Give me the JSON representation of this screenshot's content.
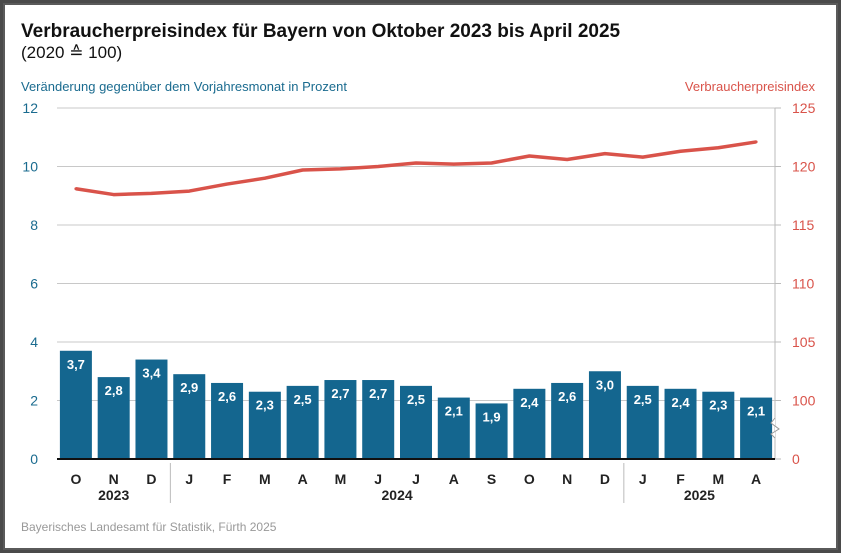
{
  "title": "Verbraucherpreisindex für Bayern von Oktober 2023 bis April 2025",
  "subtitle": "(2020 ≙ 100)",
  "source": "Bayerisches Landesamt für Statistik, Fürth 2025",
  "colors": {
    "bar": "#14668f",
    "line": "#d9534a",
    "left_axis": "#1a6b8f",
    "right_axis": "#d9534a"
  },
  "chart_data": {
    "type": "bar+line",
    "categories": [
      "O",
      "N",
      "D",
      "J",
      "F",
      "M",
      "A",
      "M",
      "J",
      "J",
      "A",
      "S",
      "O",
      "N",
      "D",
      "J",
      "F",
      "M",
      "A"
    ],
    "years": [
      {
        "label": "2023",
        "from": 0,
        "to": 2
      },
      {
        "label": "2024",
        "from": 3,
        "to": 14
      },
      {
        "label": "2025",
        "from": 15,
        "to": 18
      }
    ],
    "series": [
      {
        "name": "Veränderung gegenüber dem Vorjahresmonat in Prozent",
        "type": "bar",
        "axis": "left",
        "values": [
          3.7,
          2.8,
          3.4,
          2.9,
          2.6,
          2.3,
          2.5,
          2.7,
          2.7,
          2.5,
          2.1,
          1.9,
          2.4,
          2.6,
          3.0,
          2.5,
          2.4,
          2.3,
          2.1
        ],
        "labels": [
          "3,7",
          "2,8",
          "3,4",
          "2,9",
          "2,6",
          "2,3",
          "2,5",
          "2,7",
          "2,7",
          "2,5",
          "2,1",
          "1,9",
          "2,4",
          "2,6",
          "3,0",
          "2,5",
          "2,4",
          "2,3",
          "2,1"
        ]
      },
      {
        "name": "Verbraucherpreisindex",
        "type": "line",
        "axis": "right",
        "values": [
          118.1,
          117.6,
          117.7,
          117.9,
          118.5,
          119.0,
          119.7,
          119.8,
          120.0,
          120.3,
          120.2,
          120.3,
          120.9,
          120.6,
          121.1,
          120.8,
          121.3,
          121.6,
          122.1
        ]
      }
    ],
    "left_axis": {
      "label": "Veränderung gegenüber dem Vorjahresmonat in Prozent",
      "ticks": [
        "0",
        "2",
        "4",
        "6",
        "8",
        "10",
        "12"
      ],
      "range": [
        0,
        12
      ]
    },
    "right_axis": {
      "label": "Verbraucherpreisindex",
      "ticks": [
        "0",
        "100",
        "105",
        "110",
        "115",
        "120",
        "125"
      ],
      "range": [
        100,
        125
      ],
      "break": true
    },
    "grid": true
  }
}
